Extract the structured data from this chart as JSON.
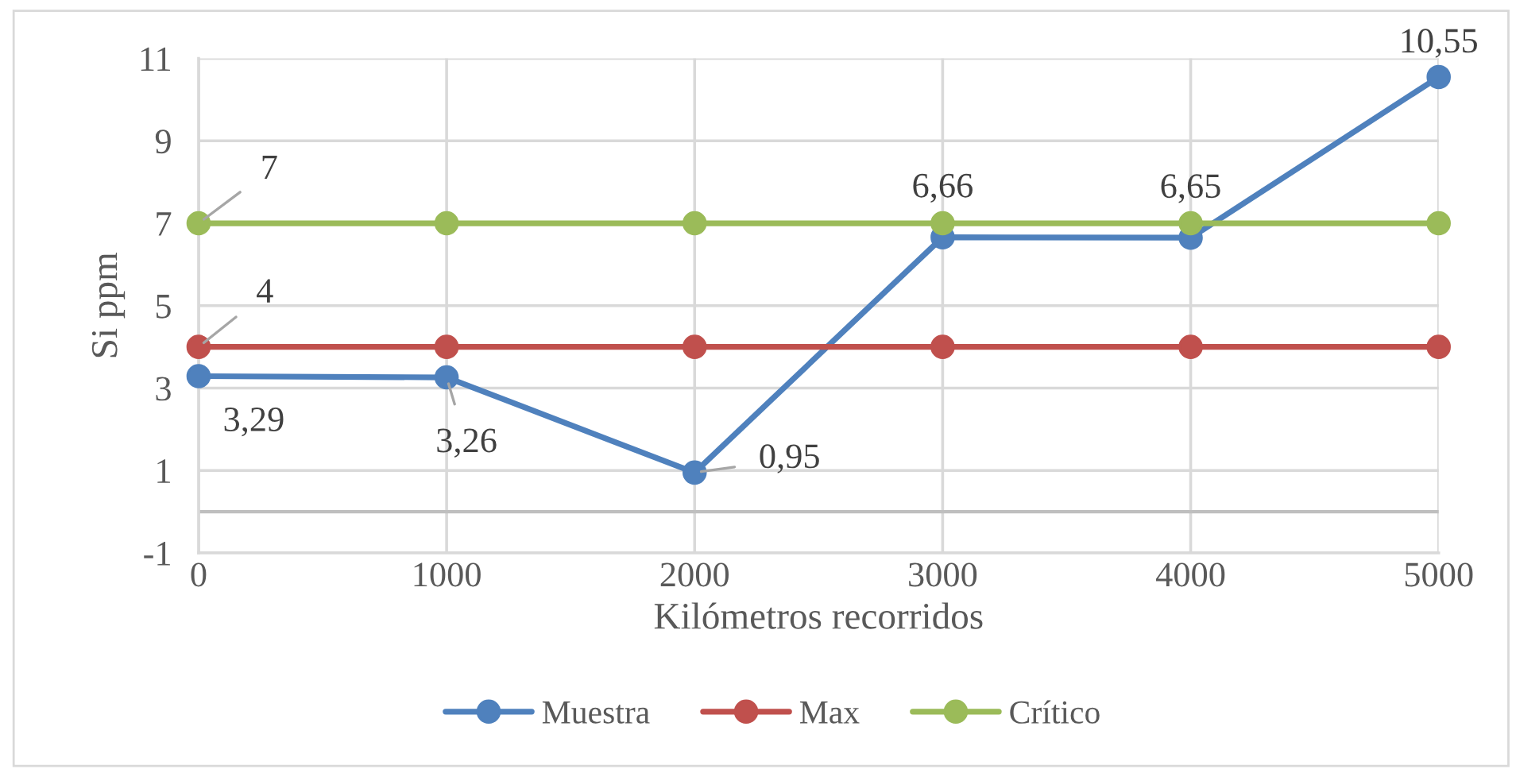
{
  "chart_data": {
    "type": "line",
    "xlabel": "Kilómetros recorridos",
    "ylabel": "Si ppm",
    "x": [
      0,
      1000,
      2000,
      3000,
      4000,
      5000
    ],
    "xlim": [
      0,
      5000
    ],
    "xticks": [
      0,
      1000,
      2000,
      3000,
      4000,
      5000
    ],
    "ylim": [
      -1,
      11
    ],
    "yticks": [
      -1,
      1,
      3,
      5,
      7,
      9,
      11
    ],
    "grid": true,
    "legend": "bottom",
    "marker": "circle",
    "line_style": "solid",
    "ref_lines": [
      {
        "axis": "y",
        "value": 0,
        "color": "#bfbfbf"
      }
    ],
    "series": [
      {
        "name": "Muestra",
        "color": "#4f81bd",
        "values": [
          3.29,
          3.26,
          0.95,
          6.66,
          6.65,
          10.55
        ],
        "value_labels": [
          "3,29",
          "3,26",
          "0,95",
          "6,66",
          "6,65",
          "10,55"
        ]
      },
      {
        "name": "Max",
        "color": "#c0504d",
        "values": [
          4,
          4,
          4,
          4,
          4,
          4
        ],
        "value_labels": [
          "4",
          null,
          null,
          null,
          null,
          null
        ]
      },
      {
        "name": "Crítico",
        "color": "#9bbb59",
        "values": [
          7,
          7,
          7,
          7,
          7,
          7
        ],
        "value_labels": [
          "7",
          null,
          null,
          null,
          null,
          null
        ]
      }
    ]
  }
}
